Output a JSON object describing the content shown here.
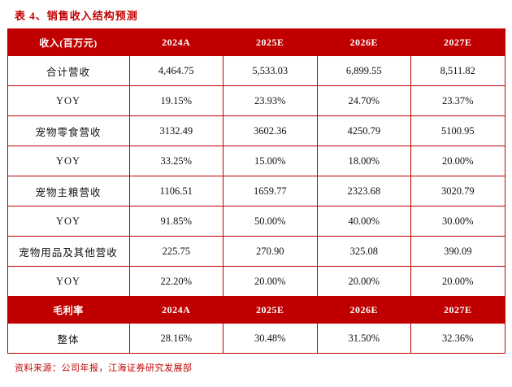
{
  "title": "表 4、销售收入结构预测",
  "source": "资料来源：公司年报，江海证券研究发展部",
  "colors": {
    "accent": "#c00000",
    "header_bg": "#c00000",
    "header_text": "#ffffff",
    "body_text": "#111111",
    "border": "#c00000"
  },
  "table": {
    "header": [
      "收入(百万元)",
      "2024A",
      "2025E",
      "2026E",
      "2027E"
    ],
    "rows": [
      [
        "合计营收",
        "4,464.75",
        "5,533.03",
        "6,899.55",
        "8,511.82"
      ],
      [
        "YOY",
        "19.15%",
        "23.93%",
        "24.70%",
        "23.37%"
      ],
      [
        "宠物零食营收",
        "3132.49",
        "3602.36",
        "4250.79",
        "5100.95"
      ],
      [
        "YOY",
        "33.25%",
        "15.00%",
        "18.00%",
        "20.00%"
      ],
      [
        "宠物主粮营收",
        "1106.51",
        "1659.77",
        "2323.68",
        "3020.79"
      ],
      [
        "YOY",
        "91.85%",
        "50.00%",
        "40.00%",
        "30.00%"
      ],
      [
        "宠物用品及其他营收",
        "225.75",
        "270.90",
        "325.08",
        "390.09"
      ],
      [
        "YOY",
        "22.20%",
        "20.00%",
        "20.00%",
        "20.00%"
      ]
    ],
    "header2": [
      "毛利率",
      "2024A",
      "2025E",
      "2026E",
      "2027E"
    ],
    "rows2": [
      [
        "整体",
        "28.16%",
        "30.48%",
        "31.50%",
        "32.36%"
      ]
    ]
  }
}
